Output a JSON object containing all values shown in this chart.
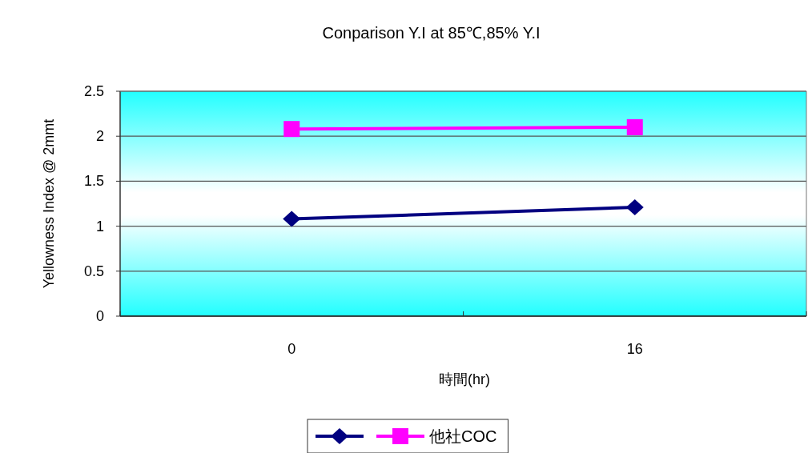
{
  "chart_data": {
    "type": "line",
    "title": "Conparison Y.I at 85℃,85% Y.I",
    "xlabel": "時間(hr)",
    "ylabel": "Yellowness Index @ 2mmt",
    "categories": [
      "0",
      "16"
    ],
    "series": [
      {
        "color": "#000080",
        "values": [
          1.08,
          1.21
        ],
        "marker": "diamond"
      },
      {
        "name": "他社COC",
        "color": "#ff00ff",
        "values": [
          2.08,
          2.1
        ],
        "marker": "square"
      }
    ],
    "ylim": [
      0,
      2.5
    ],
    "yticks": [
      0,
      0.5,
      1,
      1.5,
      2,
      2.5
    ],
    "grid": "y",
    "legend": "bottom",
    "line_style": "solid"
  }
}
